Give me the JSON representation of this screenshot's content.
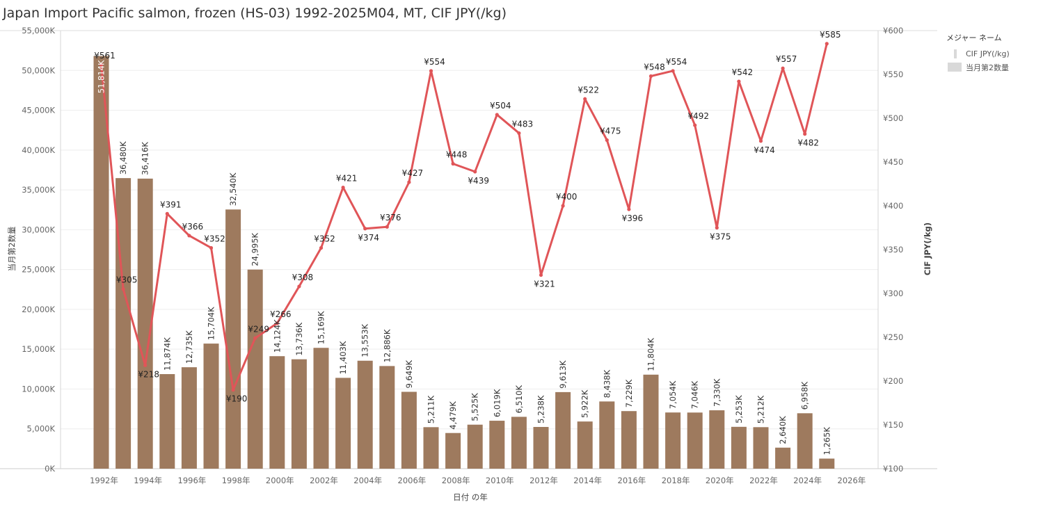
{
  "title": "Japan Import Pacific salmon, frozen (HS-03) 1992-2025M04, MT, CIF JPY(/kg)",
  "legend": {
    "title": "メジャー ネーム",
    "items": [
      {
        "label": "CIF JPY(/kg)",
        "kind": "line"
      },
      {
        "label": "当月第2数量",
        "kind": "bar"
      }
    ]
  },
  "chart_data": {
    "type": "bar+line",
    "xlabel": "日付 の年",
    "ylabel_left": "当月第2数量",
    "ylabel_right": "CIF JPY(/kg)",
    "ylim_left": [
      0,
      55000
    ],
    "ylim_right": [
      100,
      600
    ],
    "x_ticks": [
      "1992年",
      "1994年",
      "1996年",
      "1998年",
      "2000年",
      "2002年",
      "2004年",
      "2006年",
      "2008年",
      "2010年",
      "2012年",
      "2014年",
      "2016年",
      "2018年",
      "2020年",
      "2022年",
      "2024年",
      "2026年"
    ],
    "y_left_ticks": [
      "0K",
      "5,000K",
      "10,000K",
      "15,000K",
      "20,000K",
      "25,000K",
      "30,000K",
      "35,000K",
      "40,000K",
      "45,000K",
      "50,000K",
      "55,000K"
    ],
    "y_right_ticks": [
      "¥100",
      "¥150",
      "¥200",
      "¥250",
      "¥300",
      "¥350",
      "¥400",
      "¥450",
      "¥500",
      "¥550",
      "¥600"
    ],
    "grid": true,
    "bar_color": "#9e7a5e",
    "line_color": "#e05558",
    "years": [
      1992,
      1993,
      1994,
      1995,
      1996,
      1997,
      1998,
      1999,
      2000,
      2001,
      2002,
      2003,
      2004,
      2005,
      2006,
      2007,
      2008,
      2009,
      2010,
      2011,
      2012,
      2013,
      2014,
      2015,
      2016,
      2017,
      2018,
      2019,
      2020,
      2021,
      2022,
      2023,
      2024,
      2025
    ],
    "quantity_values": [
      51814,
      36480,
      36416,
      11874,
      12735,
      15704,
      32540,
      24995,
      14124,
      13736,
      15169,
      11403,
      13553,
      12886,
      9649,
      5211,
      4479,
      5525,
      6019,
      6510,
      5238,
      9613,
      5922,
      8438,
      7229,
      11804,
      7054,
      7046,
      7330,
      5253,
      5212,
      2640,
      6958,
      1265
    ],
    "quantity_labels": [
      "51,814K",
      "36,480K",
      "36,416K",
      "11,874K",
      "12,735K",
      "15,704K",
      "32,540K",
      "24,995K",
      "14,124K",
      "13,736K",
      "15,169K",
      "11,403K",
      "13,553K",
      "12,886K",
      "9,649K",
      "5,211K",
      "4,479K",
      "5,525K",
      "6,019K",
      "6,510K",
      "5,238K",
      "9,613K",
      "5,922K",
      "8,438K",
      "7,229K",
      "11,804K",
      "7,054K",
      "7,046K",
      "7,330K",
      "5,253K",
      "5,212K",
      "2,640K",
      "6,958K",
      "1,265K"
    ],
    "cif_values": [
      561,
      305,
      218,
      391,
      366,
      352,
      190,
      249,
      266,
      308,
      352,
      421,
      374,
      376,
      427,
      554,
      448,
      439,
      504,
      483,
      321,
      400,
      522,
      475,
      396,
      548,
      554,
      492,
      375,
      542,
      474,
      557,
      482,
      585
    ],
    "cif_labels": [
      "¥561",
      "¥305",
      "¥218",
      "¥391",
      "¥366",
      "¥352",
      "¥190",
      "¥249",
      "¥266",
      "¥308",
      "¥352",
      "¥421",
      "¥374",
      "¥376",
      "¥427",
      "¥554",
      "¥448",
      "¥439",
      "¥504",
      "¥483",
      "¥321",
      "¥400",
      "¥522",
      "¥475",
      "¥396",
      "¥548",
      "¥554",
      "¥492",
      "¥375",
      "¥542",
      "¥474",
      "¥557",
      "¥482",
      "¥585"
    ]
  }
}
